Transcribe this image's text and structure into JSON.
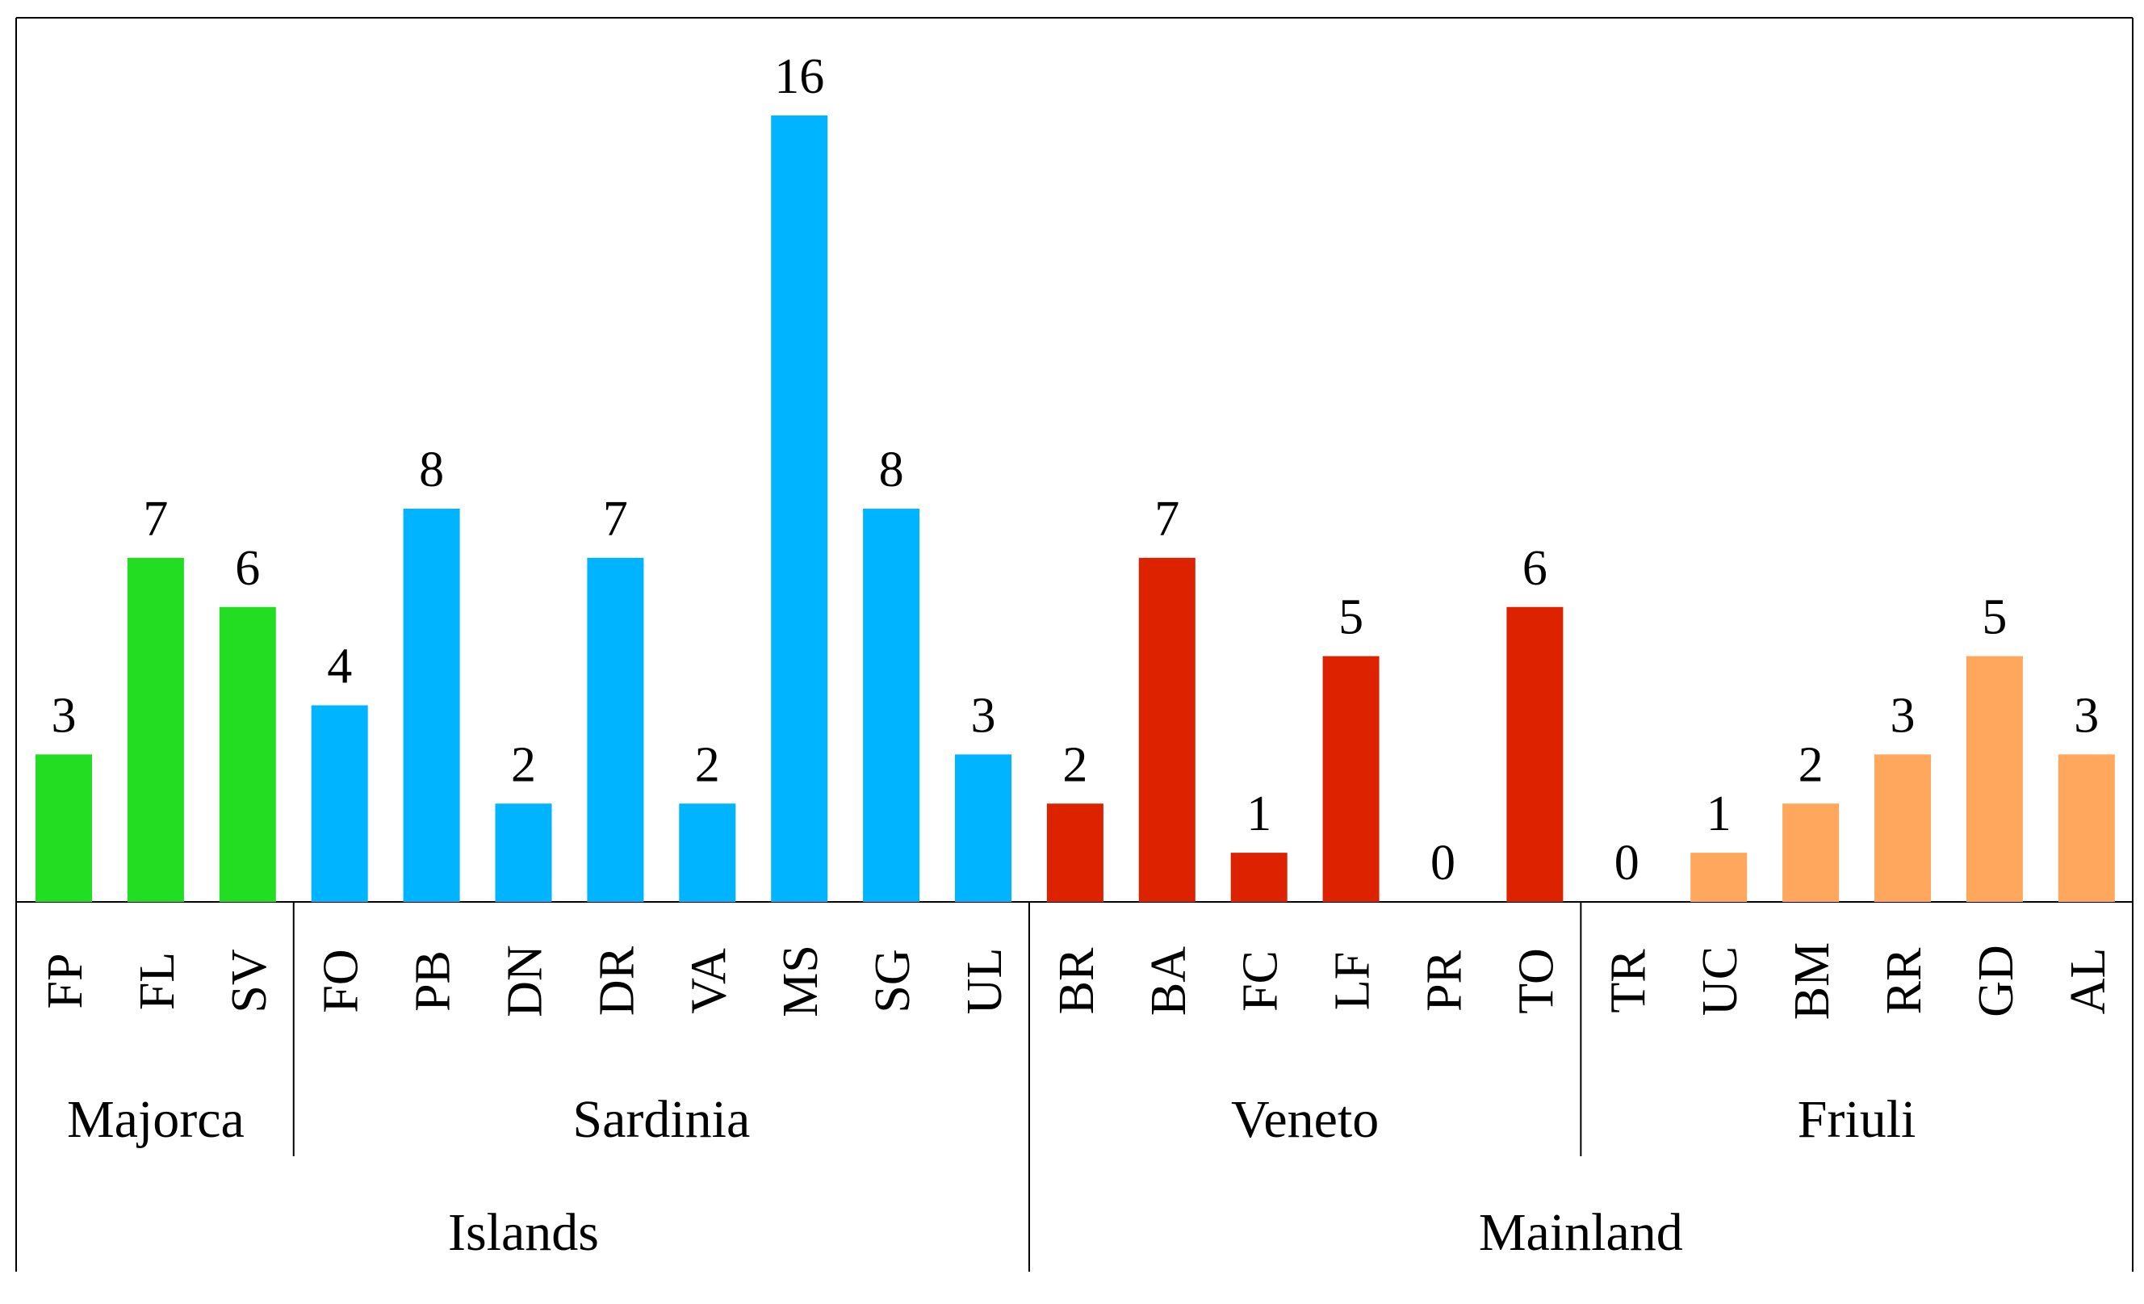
{
  "chart_data": {
    "type": "bar",
    "categories": [
      "FP",
      "FL",
      "SV",
      "FO",
      "PB",
      "DN",
      "DR",
      "VA",
      "MS",
      "SG",
      "UL",
      "BR",
      "BA",
      "FC",
      "LF",
      "PR",
      "TO",
      "TR",
      "UC",
      "BM",
      "RR",
      "GD",
      "AL"
    ],
    "values": [
      3,
      7,
      6,
      4,
      8,
      2,
      7,
      2,
      16,
      8,
      3,
      2,
      7,
      1,
      5,
      0,
      6,
      0,
      1,
      2,
      3,
      5,
      3
    ],
    "ylim": [
      0,
      16
    ],
    "grid": false,
    "series_colors": {
      "Majorca": "#22dd22",
      "Sardinia": "#00b4ff",
      "Veneto": "#dd2200",
      "Friuli": "#ffa75c"
    },
    "region_groups": [
      {
        "label": "Majorca",
        "start": 0,
        "end": 2
      },
      {
        "label": "Sardinia",
        "start": 3,
        "end": 10
      },
      {
        "label": "Veneto",
        "start": 11,
        "end": 16
      },
      {
        "label": "Friuli",
        "start": 17,
        "end": 22
      }
    ],
    "area_groups": [
      {
        "label": "Islands",
        "start": 0,
        "end": 10
      },
      {
        "label": "Mainland",
        "start": 11,
        "end": 22
      }
    ]
  }
}
